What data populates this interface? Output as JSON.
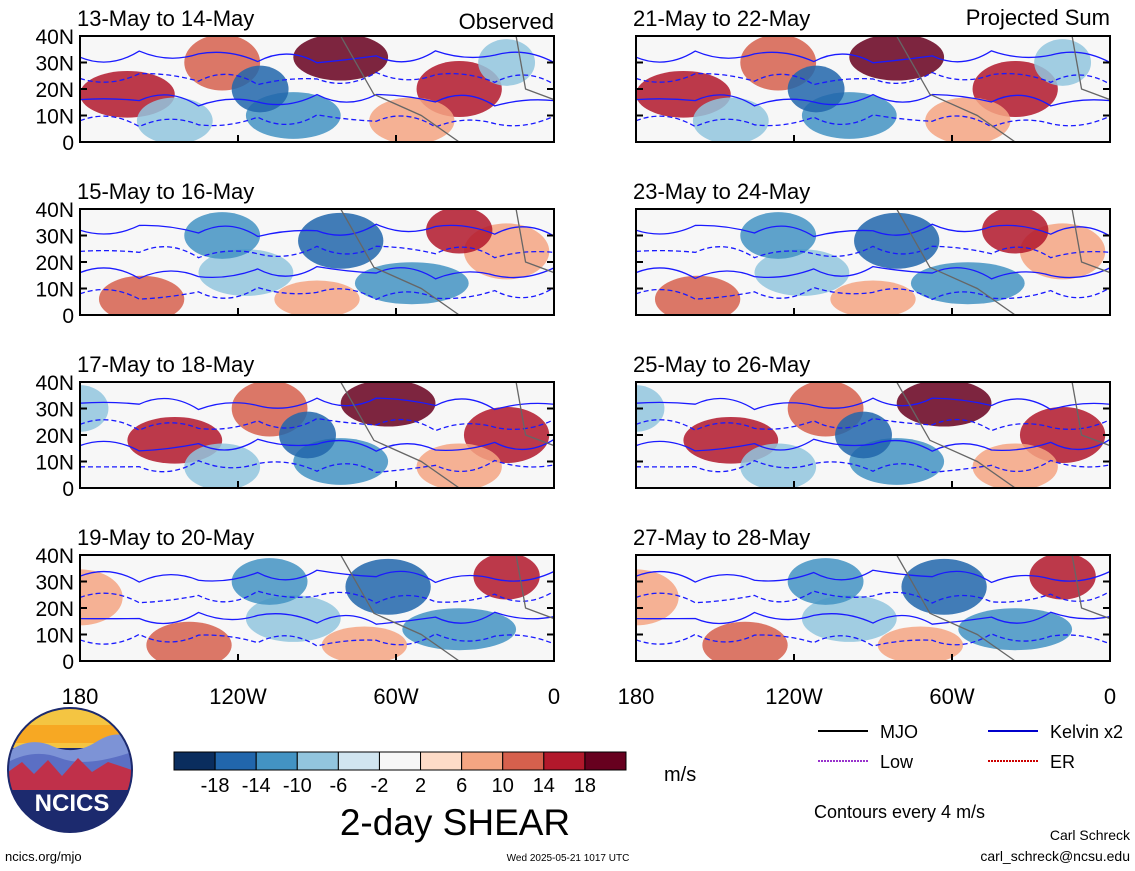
{
  "chart_data": {
    "type": "heatmap",
    "title": "2-day SHEAR",
    "column_titles": {
      "left": "Observed",
      "right": "Projected Sum"
    },
    "panels_left": [
      {
        "title": "13-May to 14-May"
      },
      {
        "title": "15-May to 16-May"
      },
      {
        "title": "17-May to 18-May"
      },
      {
        "title": "19-May to 20-May"
      }
    ],
    "panels_right": [
      {
        "title": "21-May to 22-May"
      },
      {
        "title": "23-May to 24-May"
      },
      {
        "title": "25-May to 26-May"
      },
      {
        "title": "27-May to 28-May"
      }
    ],
    "y_ticks": [
      "40N",
      "30N",
      "20N",
      "10N",
      "0"
    ],
    "x_ticks": [
      "180",
      "120W",
      "60W",
      "0"
    ],
    "colorbar": {
      "unit": "m/s",
      "tick_labels": [
        "-18",
        "-14",
        "-10",
        "-6",
        "-2",
        "2",
        "6",
        "10",
        "14",
        "18"
      ],
      "colors": [
        "#0a2d5e",
        "#2166ac",
        "#4393c3",
        "#92c5de",
        "#d1e5f0",
        "#f7f7f7",
        "#fddbc7",
        "#f4a582",
        "#d6604d",
        "#b2182b",
        "#67001f"
      ]
    },
    "legend": [
      {
        "label": "MJO",
        "color": "#000000"
      },
      {
        "label": "Kelvin x2",
        "color": "#0000cc"
      },
      {
        "label": "Low",
        "color": "#9933cc"
      },
      {
        "label": "ER",
        "color": "#cc0000"
      }
    ],
    "contour_note": "Contours every 4 m/s"
  },
  "logo": {
    "text": "NCICS"
  },
  "footer": {
    "url": "ncics.org/mjo",
    "timestamp": "Wed 2025-05-21 1017 UTC",
    "author": "Carl Schreck",
    "email": "carl_schreck@ncsu.edu"
  }
}
